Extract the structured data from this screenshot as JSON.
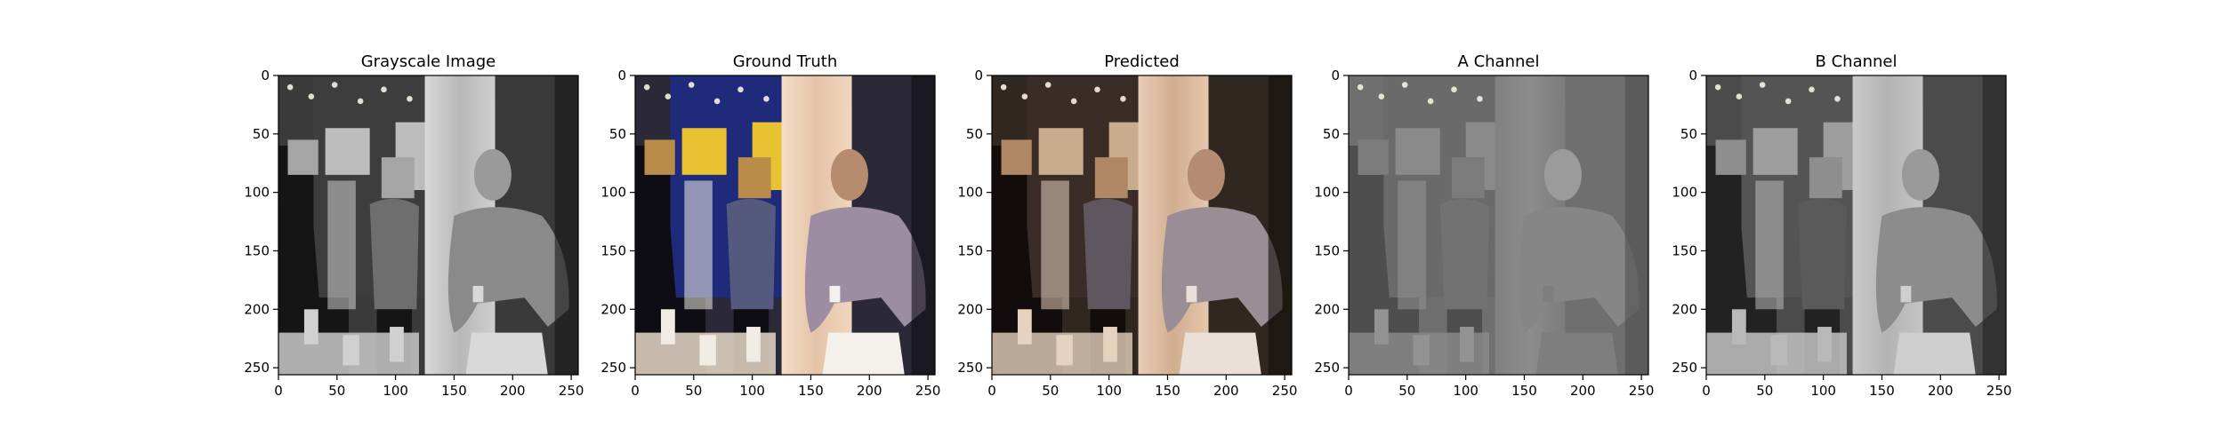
{
  "figure": {
    "panels": [
      {
        "title": "Grayscale Image",
        "mode": "gray"
      },
      {
        "title": "Ground Truth",
        "mode": "color"
      },
      {
        "title": "Predicted",
        "mode": "pred"
      },
      {
        "title": "A Channel",
        "mode": "a"
      },
      {
        "title": "B Channel",
        "mode": "b"
      }
    ]
  },
  "chart_data": [
    {
      "type": "image",
      "title": "Grayscale Image",
      "xlim": [
        0,
        256
      ],
      "ylim": [
        256,
        0
      ],
      "xticks": [
        0,
        50,
        100,
        150,
        200,
        250
      ],
      "yticks": [
        0,
        50,
        100,
        150,
        200,
        250
      ]
    },
    {
      "type": "image",
      "title": "Ground Truth",
      "xlim": [
        0,
        256
      ],
      "ylim": [
        256,
        0
      ],
      "xticks": [
        0,
        50,
        100,
        150,
        200,
        250
      ],
      "yticks": [
        0,
        50,
        100,
        150,
        200,
        250
      ]
    },
    {
      "type": "image",
      "title": "Predicted",
      "xlim": [
        0,
        256
      ],
      "ylim": [
        256,
        0
      ],
      "xticks": [
        0,
        50,
        100,
        150,
        200,
        250
      ],
      "yticks": [
        0,
        50,
        100,
        150,
        200,
        250
      ]
    },
    {
      "type": "image",
      "title": "A Channel",
      "xlim": [
        0,
        256
      ],
      "ylim": [
        256,
        0
      ],
      "xticks": [
        0,
        50,
        100,
        150,
        200,
        250
      ],
      "yticks": [
        0,
        50,
        100,
        150,
        200,
        250
      ]
    },
    {
      "type": "image",
      "title": "B Channel",
      "xlim": [
        0,
        256
      ],
      "ylim": [
        256,
        0
      ],
      "xticks": [
        0,
        50,
        100,
        150,
        200,
        250
      ],
      "yticks": [
        0,
        50,
        100,
        150,
        200,
        250
      ]
    }
  ]
}
